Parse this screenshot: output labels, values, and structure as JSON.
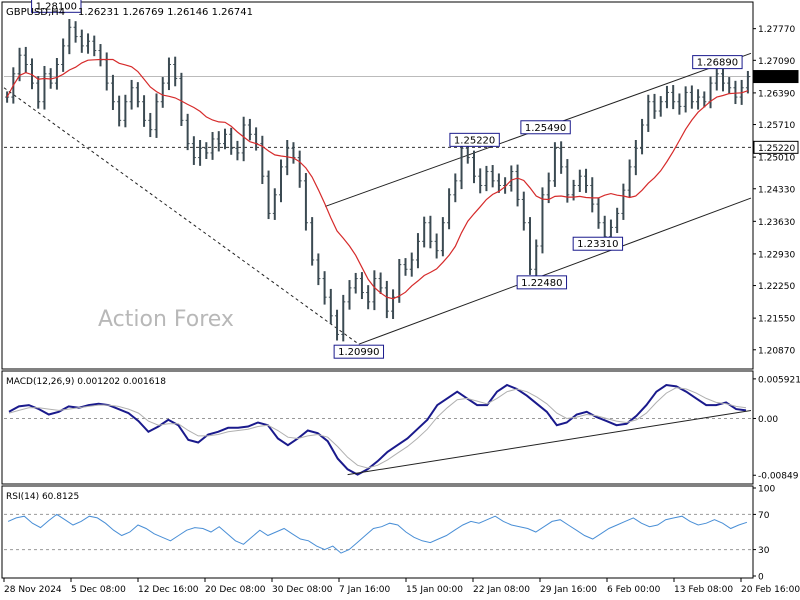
{
  "header": {
    "symbol": "GBPUSD,H4",
    "ohlc": "1.26231 1.26769 1.26146 1.26741"
  },
  "watermark": "Action Forex",
  "colors": {
    "candle": "#3b4a52",
    "ma": "#d62b2b",
    "macd": "#1a1a8c",
    "signal": "#b0b0b0",
    "rsi": "#4a8fd6",
    "dashed": "#555555"
  },
  "chart_data": [
    {
      "type": "candlestick",
      "title": "GBPUSD,H4",
      "ylim": [
        1.205,
        1.283
      ],
      "y_ticks": [
        "1.27770",
        "1.27090",
        "1.26390",
        "1.25710",
        "1.25010",
        "1.24330",
        "1.23630",
        "1.22930",
        "1.22250",
        "1.21550",
        "1.20870"
      ],
      "x_ticks": [
        "28 Nov 2024",
        "5 Dec 08:00",
        "12 Dec 16:00",
        "20 Dec 08:00",
        "30 Dec 08:00",
        "7 Jan 16:00",
        "15 Jan 00:00",
        "22 Jan 08:00",
        "29 Jan 16:00",
        "6 Feb 00:00",
        "13 Feb 08:00",
        "20 Feb 16:00"
      ],
      "price_tags": [
        {
          "label": "1.26741",
          "value": 1.26741,
          "style": "current"
        },
        {
          "label": "1.25220",
          "value": 1.2522,
          "style": "level"
        }
      ],
      "horizontal_lines": [
        {
          "value": 1.26741,
          "style": "solid"
        },
        {
          "value": 1.2522,
          "style": "dashed"
        }
      ],
      "annotations": [
        {
          "label": "1.28100",
          "value": 1.281,
          "x": 0.07,
          "anchor": "above"
        },
        {
          "label": "1.26890",
          "value": 1.2689,
          "x": 0.955,
          "anchor": "above"
        },
        {
          "label": "1.25490",
          "value": 1.2549,
          "x": 0.725,
          "anchor": "above"
        },
        {
          "label": "1.25220",
          "value": 1.2522,
          "x": 0.63,
          "anchor": "above"
        },
        {
          "label": "1.23310",
          "value": 1.2331,
          "x": 0.795,
          "anchor": "below"
        },
        {
          "label": "1.22480",
          "value": 1.2248,
          "x": 0.72,
          "anchor": "below"
        },
        {
          "label": "1.20990",
          "value": 1.2099,
          "x": 0.475,
          "anchor": "below"
        }
      ],
      "trendlines": [
        {
          "from": [
            0.0,
            1.265
          ],
          "to": [
            0.475,
            1.2099
          ],
          "style": "dotted"
        },
        {
          "from": [
            0.43,
            1.2395
          ],
          "to": [
            1.0,
            1.2724
          ],
          "style": "solid"
        },
        {
          "from": [
            0.475,
            1.2099
          ],
          "to": [
            1.0,
            1.2413
          ],
          "style": "solid"
        }
      ],
      "series": [
        {
          "name": "close",
          "values": [
            1.263,
            1.268,
            1.272,
            1.27,
            1.266,
            1.262,
            1.268,
            1.266,
            1.27,
            1.274,
            1.278,
            1.276,
            1.274,
            1.275,
            1.273,
            1.271,
            1.266,
            1.262,
            1.258,
            1.262,
            1.265,
            1.262,
            1.258,
            1.256,
            1.262,
            1.266,
            1.27,
            1.267,
            1.258,
            1.253,
            1.25,
            1.252,
            1.251,
            1.254,
            1.253,
            1.255,
            1.252,
            1.251,
            1.257,
            1.255,
            1.253,
            1.246,
            1.238,
            1.242,
            1.248,
            1.252,
            1.25,
            1.245,
            1.236,
            1.228,
            1.224,
            1.22,
            1.216,
            1.212,
            1.219,
            1.222,
            1.224,
            1.221,
            1.219,
            1.224,
            1.222,
            1.217,
            1.22,
            1.227,
            1.226,
            1.228,
            1.232,
            1.236,
            1.232,
            1.23,
            1.236,
            1.242,
            1.245,
            1.252,
            1.25,
            1.246,
            1.244,
            1.247,
            1.245,
            1.244,
            1.244,
            1.247,
            1.241,
            1.236,
            1.226,
            1.231,
            1.242,
            1.245,
            1.252,
            1.248,
            1.242,
            1.244,
            1.246,
            1.244,
            1.24,
            1.236,
            1.233,
            1.235,
            1.238,
            1.243,
            1.248,
            1.252,
            1.257,
            1.262,
            1.26,
            1.262,
            1.264,
            1.262,
            1.261,
            1.264,
            1.262,
            1.263,
            1.262,
            1.266,
            1.268,
            1.266,
            1.265,
            1.263,
            1.265,
            1.2674
          ]
        }
      ]
    },
    {
      "type": "line",
      "title": "MACD(12,26,9) 0.001202 0.001618",
      "ylim": [
        -0.0095,
        0.0068
      ],
      "y_ticks": [
        "0.005921",
        "0.00",
        "-0.00849"
      ],
      "zero_line": 0.0,
      "trendlines": [
        {
          "from": [
            0.46,
            -0.0084
          ],
          "to": [
            1.0,
            0.0012
          ],
          "style": "solid"
        }
      ],
      "series": [
        {
          "name": "macd",
          "values": [
            0.001,
            0.0018,
            0.002,
            0.0014,
            0.0006,
            0.001,
            0.0018,
            0.0016,
            0.002,
            0.0022,
            0.002,
            0.0014,
            0.0008,
            -0.0004,
            -0.002,
            -0.0012,
            -0.0002,
            -0.001,
            -0.0032,
            -0.0036,
            -0.0024,
            -0.002,
            -0.0014,
            -0.0014,
            -0.0012,
            -0.0006,
            -0.001,
            -0.003,
            -0.004,
            -0.003,
            -0.0018,
            -0.0022,
            -0.0034,
            -0.006,
            -0.0076,
            -0.0084,
            -0.0076,
            -0.0064,
            -0.005,
            -0.004,
            -0.003,
            -0.0016,
            -0.0002,
            0.002,
            0.003,
            0.004,
            0.003,
            0.002,
            0.002,
            0.004,
            0.005,
            0.0044,
            0.0034,
            0.0022,
            0.001,
            -0.001,
            -0.0006,
            0.0006,
            0.001,
            0.0002,
            -0.0004,
            -0.001,
            -0.0008,
            0.0004,
            0.002,
            0.004,
            0.005,
            0.0048,
            0.004,
            0.003,
            0.002,
            0.002,
            0.0024,
            0.0014,
            0.0012
          ]
        },
        {
          "name": "signal",
          "values": [
            0.0008,
            0.0012,
            0.0016,
            0.0016,
            0.0014,
            0.0012,
            0.0014,
            0.0016,
            0.0018,
            0.002,
            0.002,
            0.0018,
            0.0014,
            0.0008,
            -0.0004,
            -0.001,
            -0.0008,
            -0.0008,
            -0.0018,
            -0.0026,
            -0.0026,
            -0.0024,
            -0.002,
            -0.0018,
            -0.0016,
            -0.0012,
            -0.001,
            -0.0018,
            -0.0028,
            -0.003,
            -0.0026,
            -0.0024,
            -0.0028,
            -0.0042,
            -0.0058,
            -0.007,
            -0.0074,
            -0.007,
            -0.0062,
            -0.0052,
            -0.0042,
            -0.003,
            -0.0016,
            0.0002,
            0.0016,
            0.0028,
            0.003,
            0.0026,
            0.0022,
            0.003,
            0.004,
            0.0044,
            0.004,
            0.0032,
            0.0022,
            0.0008,
            0.0,
            0.0002,
            0.0006,
            0.0004,
            0.0,
            -0.0004,
            -0.0006,
            -0.0002,
            0.0008,
            0.0024,
            0.0038,
            0.0046,
            0.0044,
            0.0038,
            0.003,
            0.0024,
            0.0022,
            0.0018,
            0.0016
          ]
        }
      ]
    },
    {
      "type": "line",
      "title": "RSI(14) 60.8125",
      "ylim": [
        0,
        100
      ],
      "y_ticks": [
        "100",
        "70",
        "30",
        "0"
      ],
      "levels": [
        70,
        30
      ],
      "series": [
        {
          "name": "rsi",
          "values": [
            62,
            66,
            68,
            60,
            55,
            63,
            70,
            64,
            58,
            62,
            68,
            66,
            60,
            52,
            46,
            50,
            58,
            54,
            48,
            44,
            40,
            46,
            52,
            55,
            54,
            50,
            56,
            48,
            40,
            36,
            44,
            52,
            46,
            50,
            54,
            48,
            42,
            40,
            34,
            30,
            34,
            26,
            30,
            38,
            46,
            54,
            56,
            60,
            58,
            50,
            44,
            40,
            38,
            42,
            46,
            52,
            58,
            62,
            60,
            64,
            68,
            62,
            58,
            56,
            54,
            50,
            56,
            62,
            64,
            58,
            52,
            46,
            42,
            48,
            54,
            58,
            62,
            66,
            60,
            56,
            58,
            64,
            66,
            68,
            62,
            58,
            60,
            64,
            60,
            54,
            58,
            61
          ]
        }
      ]
    }
  ]
}
